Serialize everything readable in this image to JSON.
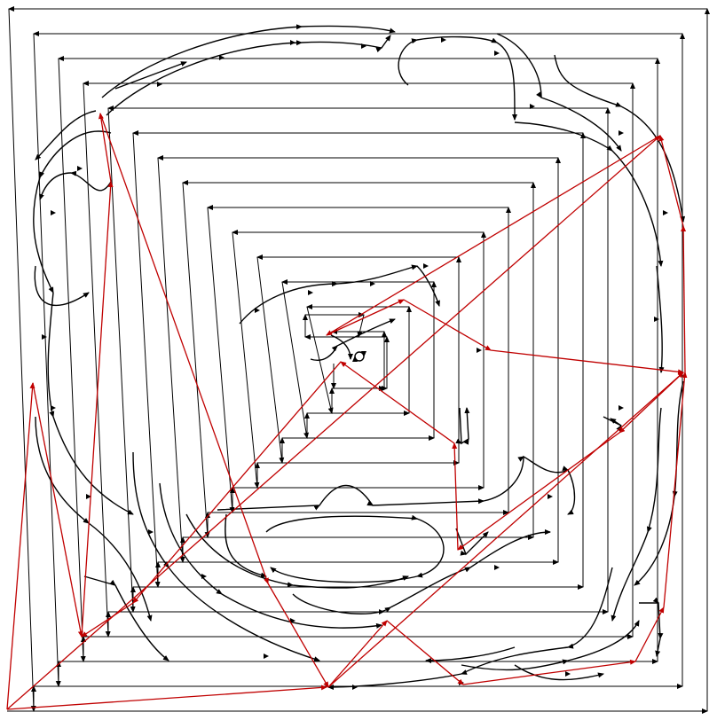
{
  "colors": {
    "background": "#ffffff",
    "travel_path": "#000000",
    "jump_path": "#c00000"
  },
  "icons": {
    "direction_marker": "arrowhead-icon"
  }
}
